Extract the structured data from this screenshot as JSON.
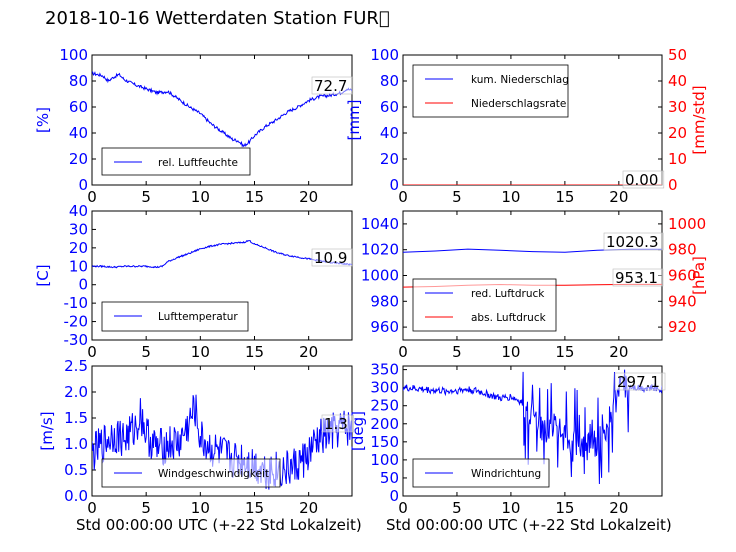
{
  "title": "2018-10-16 Wetterdaten Station FUR\u0000",
  "xlabel": "Std 00:00:00 UTC (+-22 Std Lokalzeit)",
  "colors": {
    "left_axis": "#0000ff",
    "right_axis": "#ff0000",
    "series_blue": "#0000ff",
    "series_red": "#ff0000"
  },
  "chart_data": [
    {
      "id": "humidity",
      "type": "line",
      "xlim": [
        0,
        24
      ],
      "xticks": [
        0,
        5,
        10,
        15,
        20
      ],
      "ylim": [
        0,
        100
      ],
      "yticks": [
        0,
        20,
        40,
        60,
        80,
        100
      ],
      "ylabel": "[%]",
      "legend": [
        {
          "name": "rel. Luftfeuchte",
          "color": "#0000ff"
        }
      ],
      "last_value_label": "72.7",
      "series": [
        {
          "name": "rel. Luftfeuchte",
          "color": "#0000ff",
          "noise": 1.2,
          "x": [
            0,
            0.5,
            1,
            1.5,
            2,
            2.5,
            3,
            3.5,
            4,
            5,
            6,
            7,
            8,
            9,
            10,
            11,
            12,
            13,
            13.5,
            14,
            14.5,
            15,
            16,
            17,
            18,
            19,
            20,
            21,
            22,
            23,
            23.5,
            24
          ],
          "y": [
            86,
            85,
            84,
            80,
            83,
            85,
            81,
            79,
            77,
            74,
            71,
            72,
            66,
            60,
            55,
            47,
            41,
            35,
            34,
            30,
            33,
            38,
            45,
            50,
            56,
            60,
            65,
            68,
            69,
            71,
            74,
            72.7
          ]
        }
      ]
    },
    {
      "id": "precipitation",
      "type": "line",
      "xlim": [
        0,
        24
      ],
      "xticks": [
        0,
        5,
        10,
        15,
        20
      ],
      "ylim": [
        0,
        100
      ],
      "yticks": [
        0,
        20,
        40,
        60,
        80,
        100
      ],
      "ylabel": "[mm]",
      "ylim_right": [
        0,
        50
      ],
      "yticks_right": [
        0,
        10,
        20,
        30,
        40,
        50
      ],
      "ylabel_right": "[mm/std]",
      "legend": [
        {
          "name": "kum. Niederschlag",
          "color": "#0000ff"
        },
        {
          "name": "Niederschlagsrate",
          "color": "#ff0000"
        }
      ],
      "last_value_label": "0.00",
      "series": [
        {
          "name": "kum. Niederschlag",
          "color": "#0000ff",
          "x": [
            0,
            24
          ],
          "y": [
            0,
            0
          ]
        },
        {
          "name": "Niederschlagsrate",
          "color": "#ff0000",
          "axis": "right",
          "x": [
            0,
            24
          ],
          "y": [
            0,
            0
          ]
        }
      ]
    },
    {
      "id": "temperature",
      "type": "line",
      "xlim": [
        0,
        24
      ],
      "xticks": [
        0,
        5,
        10,
        15,
        20
      ],
      "ylim": [
        -30,
        40
      ],
      "yticks": [
        -30,
        -20,
        -10,
        0,
        10,
        20,
        30,
        40
      ],
      "ylabel": "[C]",
      "legend": [
        {
          "name": "Lufttemperatur",
          "color": "#0000ff"
        }
      ],
      "last_value_label": "10.9",
      "series": [
        {
          "name": "Lufttemperatur",
          "color": "#0000ff",
          "noise": 0.4,
          "x": [
            0,
            1,
            2,
            3,
            4,
            5,
            6,
            6.5,
            7,
            8,
            9,
            10,
            11,
            12,
            13,
            14,
            14.5,
            15,
            16,
            17,
            18,
            19,
            20,
            21,
            22,
            23,
            24
          ],
          "y": [
            10,
            10,
            9.5,
            10,
            10,
            10,
            9.5,
            10,
            12.5,
            15,
            17,
            19.5,
            21,
            22,
            22.5,
            23,
            24,
            22,
            20,
            17.5,
            16,
            15,
            14,
            13,
            12,
            11.5,
            10.9
          ]
        }
      ]
    },
    {
      "id": "pressure",
      "type": "line",
      "xlim": [
        0,
        24
      ],
      "xticks": [
        0,
        5,
        10,
        15,
        20
      ],
      "ylim": [
        950,
        1050
      ],
      "yticks": [
        960,
        980,
        1000,
        1020,
        1040
      ],
      "ylabel_right": "[hPa]",
      "ylim_right": [
        910,
        1010
      ],
      "yticks_right": [
        920,
        940,
        960,
        980,
        1000
      ],
      "legend": [
        {
          "name": "red. Luftdruck",
          "color": "#0000ff"
        },
        {
          "name": "abs. Luftdruck",
          "color": "#ff0000"
        }
      ],
      "value_labels": [
        "1020.3",
        "953.1"
      ],
      "series": [
        {
          "name": "red. Luftdruck",
          "color": "#0000ff",
          "x": [
            0,
            3,
            6,
            9,
            12,
            15,
            18,
            21,
            24
          ],
          "y": [
            1018,
            1019,
            1020.5,
            1019.5,
            1018.5,
            1018,
            1019.5,
            1020.3,
            1020.3
          ]
        },
        {
          "name": "abs. Luftdruck",
          "color": "#ff0000",
          "axis": "right",
          "x": [
            0,
            3,
            6,
            9,
            12,
            15,
            18,
            21,
            24
          ],
          "y": [
            951,
            951.5,
            952.5,
            953,
            952.5,
            952.5,
            952.8,
            953.1,
            953.1
          ]
        }
      ]
    },
    {
      "id": "windspeed",
      "type": "line",
      "xlim": [
        0,
        24
      ],
      "xticks": [
        0,
        5,
        10,
        15,
        20
      ],
      "ylim": [
        0,
        2.5
      ],
      "yticks": [
        0.0,
        0.5,
        1.0,
        1.5,
        2.0,
        2.5
      ],
      "ylabel": "[m/s]",
      "legend": [
        {
          "name": "Windgeschwindigkeit",
          "color": "#0000ff"
        }
      ],
      "last_value_label": "1.3",
      "series": [
        {
          "name": "Windgeschwindigkeit",
          "color": "#0000ff",
          "noise": 0.38,
          "x": [
            0,
            1,
            2,
            3,
            4,
            4.5,
            5,
            6,
            7,
            8,
            9,
            9.5,
            10,
            11,
            12,
            13,
            14,
            15,
            16,
            17,
            18,
            19,
            20,
            21,
            22,
            23,
            24
          ],
          "y": [
            0.8,
            1.0,
            1.2,
            1.1,
            1.3,
            1.6,
            1.2,
            0.9,
            1.0,
            1.0,
            1.4,
            1.7,
            1.1,
            0.9,
            0.8,
            0.7,
            0.7,
            0.6,
            0.5,
            0.5,
            0.5,
            0.6,
            0.8,
            1.1,
            1.2,
            1.3,
            1.3
          ]
        }
      ]
    },
    {
      "id": "winddirection",
      "type": "line",
      "xlim": [
        0,
        24
      ],
      "xticks": [
        0,
        5,
        10,
        15,
        20
      ],
      "ylim": [
        0,
        360
      ],
      "yticks": [
        0,
        50,
        100,
        150,
        200,
        250,
        300,
        350
      ],
      "ylabel": "[deg]",
      "legend": [
        {
          "name": "Windrichtung",
          "color": "#0000ff"
        }
      ],
      "last_value_label": "297.1",
      "series": [
        {
          "name": "Windrichtung",
          "color": "#0000ff",
          "noise": 40,
          "x": [
            0,
            2,
            4,
            6,
            7,
            8,
            9,
            10,
            11,
            12,
            13,
            14,
            15,
            16,
            17,
            18,
            19,
            20,
            21,
            22,
            23,
            24
          ],
          "y": [
            300,
            295,
            290,
            295,
            290,
            280,
            270,
            275,
            260,
            220,
            180,
            200,
            160,
            150,
            140,
            150,
            200,
            300,
            305,
            300,
            300,
            297
          ]
        }
      ]
    }
  ]
}
